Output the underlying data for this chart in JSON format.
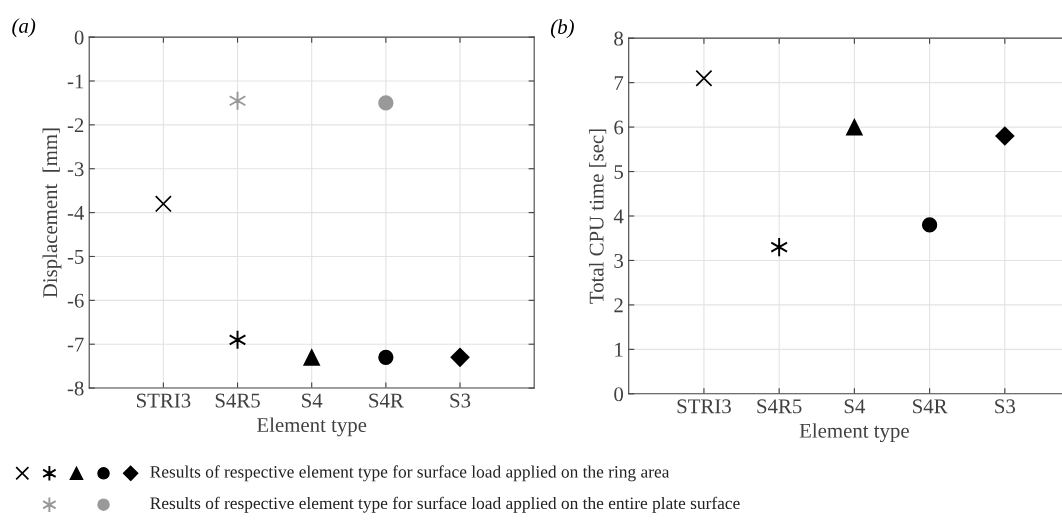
{
  "chart_data": [
    {
      "type": "scatter",
      "annotations": [
        "(a)"
      ],
      "xlabel": "Element type",
      "ylabel": "Displacement  [mm]",
      "categories": [
        "STRI3",
        "S4R5",
        "S4",
        "S4R",
        "S3"
      ],
      "ylim": [
        -8,
        0
      ],
      "yticks": [
        -8,
        -7,
        -6,
        -5,
        -4,
        -3,
        -2,
        -1,
        0
      ],
      "grid": true,
      "legend": "bottom",
      "series": [
        {
          "name": "Results of respective element type for surface load applied on the ring area",
          "color": "#000000",
          "marker": [
            "cross",
            "star",
            "triangle",
            "circle",
            "diamond"
          ],
          "values": [
            -3.8,
            -6.9,
            -7.3,
            -7.3,
            -7.3
          ]
        },
        {
          "name": "Results of respective element type for surface load applied on the entire plate surface",
          "color": "#999999",
          "marker": [
            null,
            "star",
            null,
            "circle",
            null
          ],
          "values": [
            null,
            -1.45,
            null,
            -1.5,
            null
          ]
        }
      ]
    },
    {
      "type": "scatter",
      "annotations": [
        "(b)"
      ],
      "xlabel": "Element type",
      "ylabel": "Total CPU time [sec]",
      "categories": [
        "STRI3",
        "S4R5",
        "S4",
        "S4R",
        "S3"
      ],
      "ylim": [
        0,
        8
      ],
      "yticks": [
        0,
        1,
        2,
        3,
        4,
        5,
        6,
        7,
        8
      ],
      "grid": true,
      "series": [
        {
          "color": "#000000",
          "marker": [
            "cross",
            "star",
            "triangle",
            "circle",
            "diamond"
          ],
          "values": [
            7.1,
            3.3,
            6.0,
            3.8,
            5.8
          ]
        }
      ]
    }
  ]
}
